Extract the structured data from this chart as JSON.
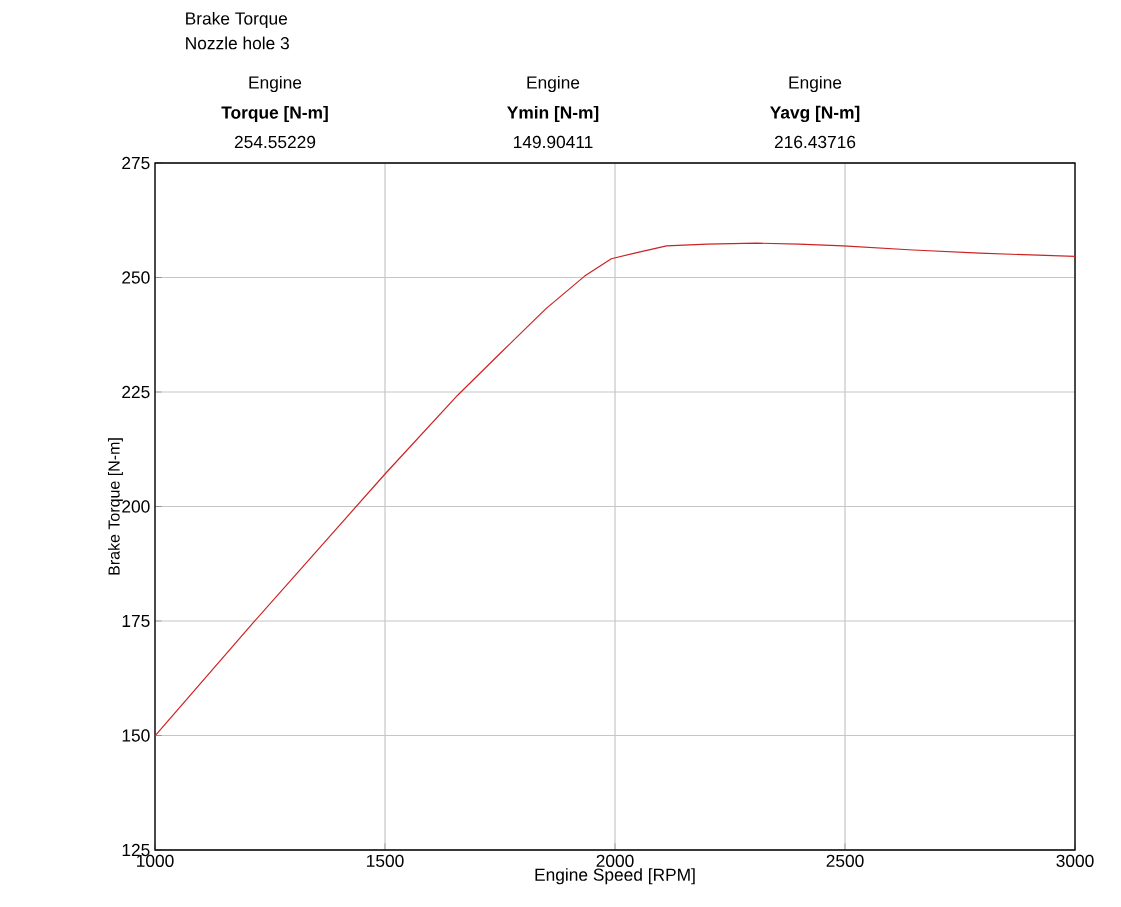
{
  "chart_data": {
    "type": "line",
    "title": "Brake Torque",
    "subtitle": "Nozzle hole 3",
    "annotations": [
      "Engine",
      "Torque [N-m]",
      "254.55229",
      "Engine",
      "Ymin [N-m]",
      "149.90411",
      "Engine",
      "Yavg [N-m]",
      "216.43716"
    ],
    "xlabel": "Engine Speed [RPM]",
    "ylabel": "Brake Torque [N-m]",
    "x": [
      1000,
      1100,
      1215,
      1350,
      1500,
      1658,
      1750,
      1850,
      1934,
      1992,
      2050,
      2112,
      2200,
      2308,
      2400,
      2496,
      2648,
      2793,
      3000
    ],
    "series": [
      {
        "color": "#cc2222",
        "values": [
          149.9,
          161.5,
          174.8,
          190.1,
          207.1,
          224.3,
          233.4,
          243.2,
          250.3,
          254.1,
          255.5,
          256.9,
          257.3,
          257.5,
          257.3,
          256.9,
          256.0,
          255.3,
          254.6
        ]
      }
    ],
    "xlim": [
      1000,
      3000
    ],
    "ylim": [
      125,
      275
    ],
    "xticks": [
      1000,
      1500,
      2000,
      2500,
      3000
    ],
    "yticks": [
      125,
      150,
      175,
      200,
      225,
      250,
      275
    ],
    "grid": true,
    "marker": "none",
    "line_style": "solid"
  }
}
